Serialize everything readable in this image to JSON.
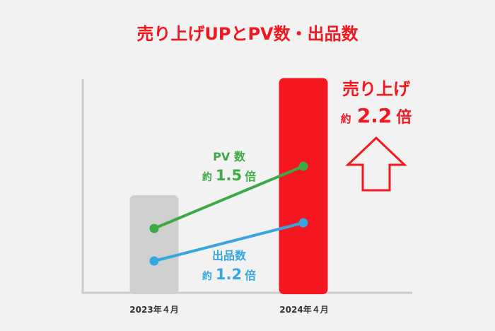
{
  "title": "売り上げUPとPV数・出品数",
  "chart_data": {
    "type": "bar",
    "categories": [
      "2023年４月",
      "2024年４月"
    ],
    "series": [
      {
        "name": "売り上げ",
        "values": [
          1,
          2.2
        ]
      },
      {
        "name": "PV数",
        "values": [
          1,
          1.5
        ]
      },
      {
        "name": "出品数",
        "values": [
          1,
          1.2
        ]
      }
    ],
    "annotations": {
      "sales": {
        "label": "売り上げ",
        "prefix": "約",
        "value": "2.2",
        "suffix": "倍"
      },
      "pv": {
        "label": "PV 数",
        "prefix": "約",
        "value": "1.5",
        "suffix": "倍"
      },
      "listings": {
        "label": "出品数",
        "prefix": "約",
        "value": "1.2",
        "suffix": "倍"
      }
    },
    "colors": {
      "bar_2023": "#cfcfcf",
      "bar_2024": "#f5171f",
      "pv_line": "#3cab46",
      "listings_line": "#36a6de",
      "title": "#f0171f",
      "axis": "#cccccc",
      "tick_label": "#333333"
    },
    "grid": false,
    "axes_visible": "left and bottom only, no ticks"
  }
}
